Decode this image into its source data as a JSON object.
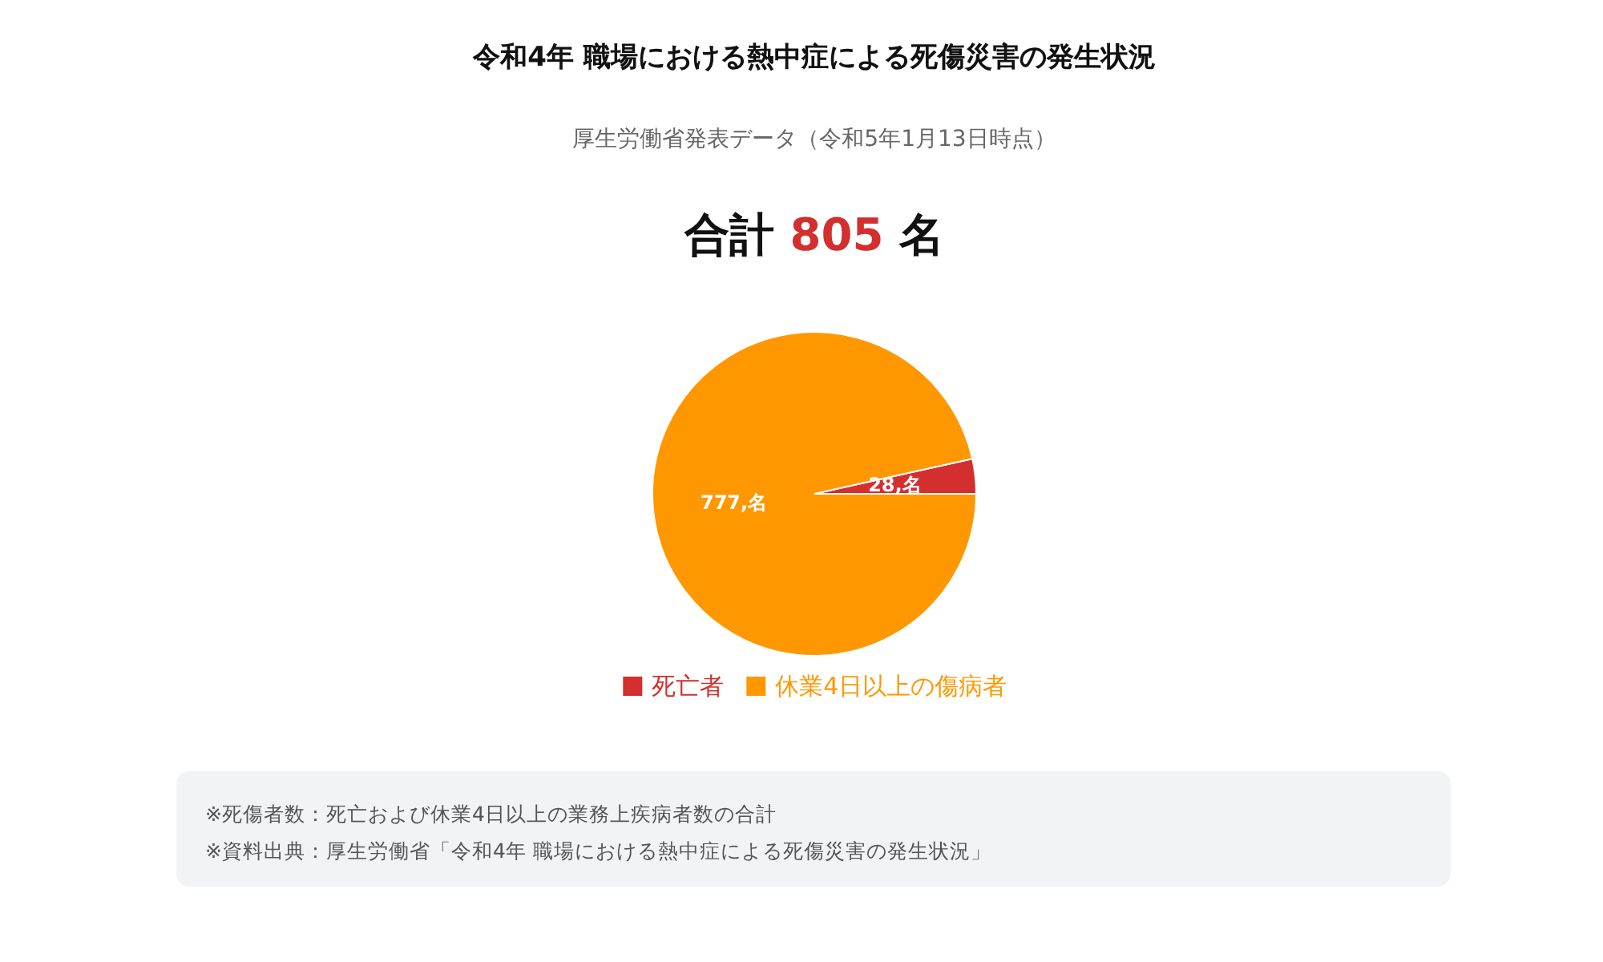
{
  "chart_data": {
    "type": "pie",
    "title": "令和4年 職場における熱中症による死傷災害の発生状況",
    "subtitle": "厚生労働省発表データ（令和5年1月13日時点）",
    "categories": [
      "死亡者",
      "休業4日以上の傷病者"
    ],
    "values": [
      28,
      777
    ],
    "colors": [
      "#d32f2f",
      "#ff9800"
    ],
    "value_labels": [
      "28,名",
      "777,名"
    ],
    "legend": "bottom",
    "annotations": [
      "合計 805 名",
      "※死傷者数：死亡および休業4日以上の業務上疾病者数の合計",
      "※資料出典：厚生労働省「令和4年 職場における熱中症による死傷災害の発生状況」"
    ]
  }
}
